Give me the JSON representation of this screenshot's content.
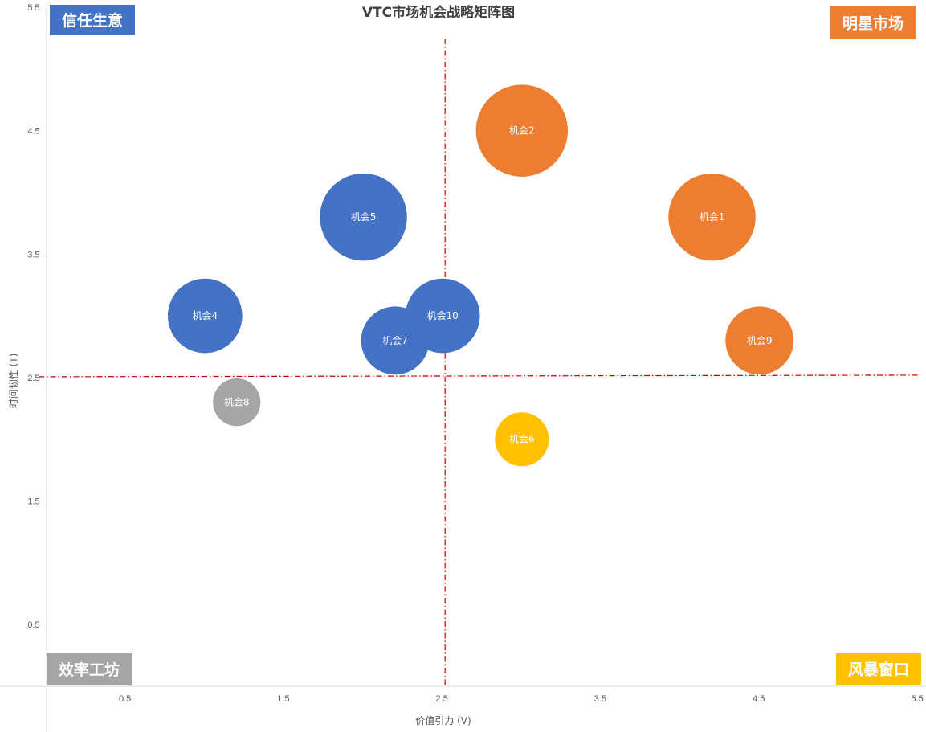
{
  "chart_data": {
    "type": "scatter",
    "title": "VTC市场机会战略矩阵图",
    "xlabel": "价值引力 (V)",
    "ylabel": "时间韧性 (T)",
    "xlim": [
      0,
      5.5
    ],
    "ylim": [
      0,
      5.5
    ],
    "x_ticks": [
      0.5,
      1.5,
      2.5,
      3.5,
      4.5,
      5.5
    ],
    "y_ticks": [
      0.5,
      1.5,
      2.5,
      3.5,
      4.5,
      5.5
    ],
    "grid": false,
    "divider_lines": {
      "x": 2.5,
      "y": 2.5,
      "color": "#C00000"
    },
    "quadrants": [
      {
        "name": "信任生意",
        "position": "top-left",
        "color": "#4472C4"
      },
      {
        "name": "明星市场",
        "position": "top-right",
        "color": "#ED7D31"
      },
      {
        "name": "效率工坊",
        "position": "bottom-left",
        "color": "#A5A5A5"
      },
      {
        "name": "风暴窗口",
        "position": "bottom-right",
        "color": "#FFC000"
      }
    ],
    "points": [
      {
        "label": "机会1",
        "x": 4.2,
        "y": 3.8,
        "size": 0.55,
        "color": "#ED7D31"
      },
      {
        "label": "机会2",
        "x": 3.0,
        "y": 4.5,
        "size": 0.58,
        "color": "#ED7D31"
      },
      {
        "label": "机会4",
        "x": 1.0,
        "y": 3.0,
        "size": 0.47,
        "color": "#4472C4"
      },
      {
        "label": "机会5",
        "x": 2.0,
        "y": 3.8,
        "size": 0.55,
        "color": "#4472C4"
      },
      {
        "label": "机会6",
        "x": 3.0,
        "y": 2.0,
        "size": 0.34,
        "color": "#FFC000"
      },
      {
        "label": "机会7",
        "x": 2.2,
        "y": 2.8,
        "size": 0.43,
        "color": "#4472C4"
      },
      {
        "label": "机会8",
        "x": 1.2,
        "y": 2.3,
        "size": 0.3,
        "color": "#A5A5A5"
      },
      {
        "label": "机会9",
        "x": 4.5,
        "y": 2.8,
        "size": 0.43,
        "color": "#ED7D31"
      },
      {
        "label": "机会10",
        "x": 2.5,
        "y": 3.0,
        "size": 0.47,
        "color": "#4472C4"
      }
    ]
  }
}
